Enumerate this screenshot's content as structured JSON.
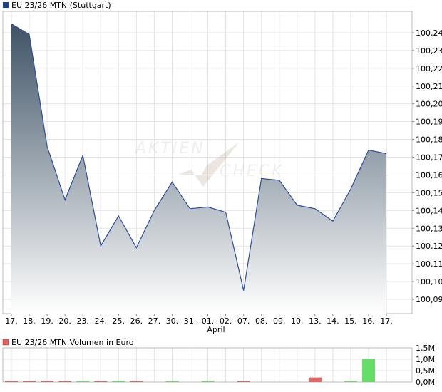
{
  "chart_data": [
    {
      "type": "area",
      "title": "EU 23/26 MTN (Stuttgart)",
      "legend_color": "#1f3f8f",
      "line_color": "#2d4e9a",
      "fill_top": "#3f5366",
      "fill_bottom": "#ffffff",
      "grid": true,
      "legend": "top-left",
      "categories": [
        "17.",
        "18.",
        "19.",
        "20.",
        "23.",
        "24.",
        "25.",
        "26.",
        "27.",
        "30.",
        "31.",
        "01.",
        "02.",
        "07.",
        "08.",
        "09.",
        "10.",
        "13.",
        "14.",
        "15.",
        "16.",
        "17."
      ],
      "month_label": "April",
      "values": [
        100.245,
        100.239,
        100.176,
        100.146,
        100.171,
        100.12,
        100.137,
        100.119,
        100.14,
        100.156,
        100.141,
        100.142,
        100.139,
        100.095,
        100.158,
        100.157,
        100.143,
        100.141,
        100.134,
        100.152,
        100.174,
        100.172
      ],
      "y_ticks": [
        "100,09",
        "100,10",
        "100,11",
        "100,12",
        "100,13",
        "100,14",
        "100,15",
        "100,16",
        "100,17",
        "100,18",
        "100,19",
        "100,20",
        "100,21",
        "100,22",
        "100,23",
        "100,24"
      ],
      "ylim": [
        100.082,
        100.252
      ]
    },
    {
      "type": "bar",
      "title": "EU 23/26 MTN Volumen in Euro",
      "legend_color": "#e06666",
      "up_color": "#66dd66",
      "down_color": "#e06666",
      "grid": true,
      "legend": "top-left",
      "values": [
        0.02,
        0.03,
        0.01,
        0.02,
        0.01,
        0.01,
        0.02,
        0.02,
        0,
        0.02,
        0,
        0.02,
        0,
        0.02,
        0,
        0,
        0,
        0.2,
        0,
        0.01,
        1.0,
        0
      ],
      "directions": [
        "down",
        "down",
        "down",
        "down",
        "up",
        "down",
        "up",
        "down",
        "up",
        "up",
        "down",
        "up",
        "down",
        "down",
        "up",
        "down",
        "down",
        "down",
        "down",
        "up",
        "up",
        "down"
      ],
      "y_ticks": [
        "0,0M",
        "0,5M",
        "1,0M",
        "1,5M"
      ],
      "ylim": [
        0,
        1.5
      ]
    }
  ],
  "watermark": {
    "line1": "AKTIEN",
    "line2": "CHECK"
  }
}
